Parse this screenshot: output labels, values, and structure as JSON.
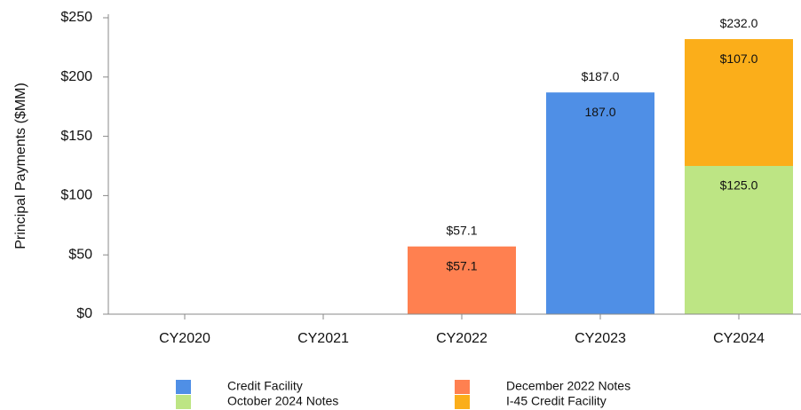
{
  "chart_data": {
    "type": "stacked_bar",
    "y_label": "Principal Payments ($MM)",
    "categories": [
      "CY2020",
      "CY2021",
      "CY2022",
      "CY2023",
      "CY2024"
    ],
    "series": [
      {
        "name": "Credit Facility",
        "color": "#4f8fe6",
        "values": [
          null,
          null,
          null,
          187.0,
          null
        ],
        "value_labels": [
          null,
          null,
          null,
          "187.0",
          null
        ]
      },
      {
        "name": "December 2022 Notes",
        "color": "#ff8050",
        "values": [
          null,
          null,
          57.1,
          null,
          null
        ],
        "value_labels": [
          null,
          null,
          "$57.1",
          null,
          null
        ]
      },
      {
        "name": "October 2024 Notes",
        "color": "#bde584",
        "values": [
          null,
          null,
          null,
          null,
          125.0
        ],
        "value_labels": [
          null,
          null,
          null,
          null,
          "$125.0"
        ]
      },
      {
        "name": "I-45 Credit Facility",
        "color": "#fbae1a",
        "values": [
          null,
          null,
          null,
          null,
          107.0
        ],
        "value_labels": [
          null,
          null,
          null,
          null,
          "$107.0"
        ]
      }
    ],
    "totals": [
      null,
      null,
      57.1,
      187.0,
      232.0
    ],
    "total_labels": [
      null,
      null,
      "$57.1",
      "$187.0",
      "$232.0"
    ],
    "ylim": [
      0,
      250
    ],
    "yticks": [
      {
        "value": 0,
        "label": "$0"
      },
      {
        "value": 50,
        "label": "$50"
      },
      {
        "value": 100,
        "label": "$100"
      },
      {
        "value": 150,
        "label": "$150"
      },
      {
        "value": 200,
        "label": "$200"
      },
      {
        "value": 250,
        "label": "$250"
      }
    ]
  }
}
